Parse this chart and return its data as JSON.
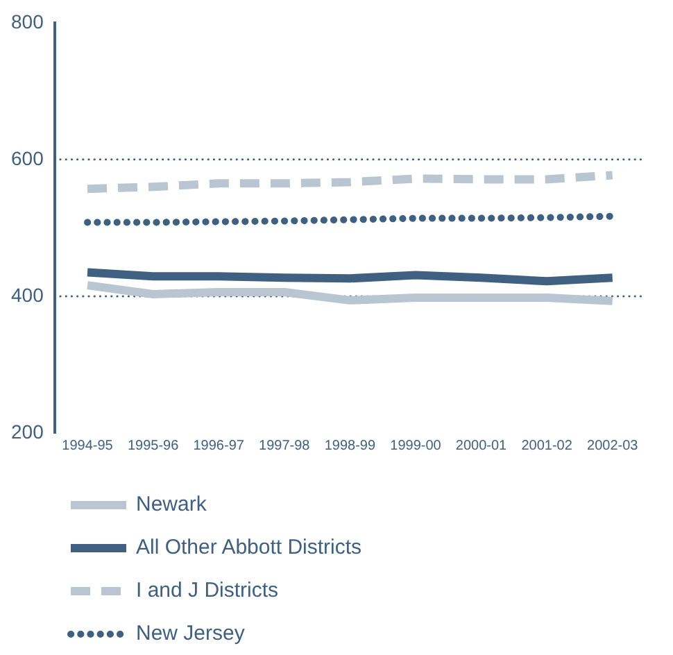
{
  "chart_data": {
    "type": "line",
    "categories": [
      "1994-95",
      "1995-96",
      "1996-97",
      "1997-98",
      "1998-99",
      "1999-00",
      "2000-01",
      "2001-02",
      "2002-03"
    ],
    "series": [
      {
        "name": "Newark",
        "color": "#b9c5d1",
        "line_style": "solid",
        "values": [
          416,
          403,
          406,
          406,
          394,
          398,
          398,
          398,
          393
        ]
      },
      {
        "name": "All Other Abbott Districts",
        "color": "#3f6080",
        "line_style": "solid",
        "values": [
          435,
          429,
          429,
          427,
          426,
          431,
          427,
          422,
          427
        ]
      },
      {
        "name": "I and J Districts",
        "color": "#b9c5d1",
        "line_style": "dashed",
        "values": [
          557,
          560,
          565,
          565,
          567,
          572,
          571,
          571,
          577
        ]
      },
      {
        "name": "New Jersey",
        "color": "#3f6080",
        "line_style": "dotted",
        "values": [
          508,
          508,
          509,
          510,
          512,
          514,
          514,
          515,
          517
        ]
      }
    ],
    "ylim": [
      200,
      800
    ],
    "yticks": [
      200,
      400,
      600,
      800
    ],
    "grid": false,
    "legend": "bottom",
    "ref_lines": [
      {
        "axis": "y",
        "value": 400,
        "line_style": "dotted",
        "color": "#3f6080"
      },
      {
        "axis": "y",
        "value": 600,
        "line_style": "dotted",
        "color": "#3f6080"
      }
    ]
  }
}
